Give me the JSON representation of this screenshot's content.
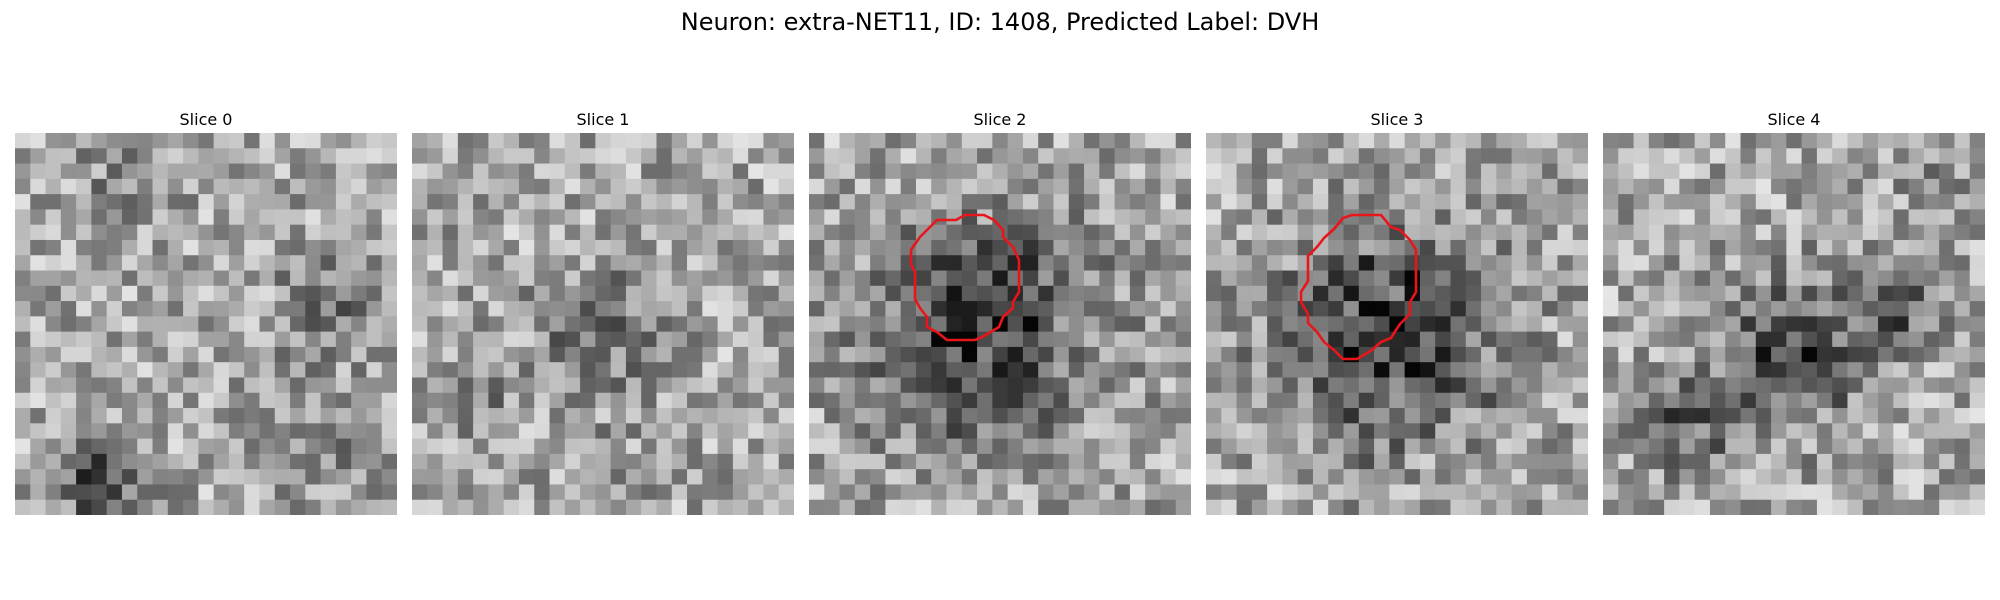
{
  "figure": {
    "title": "Neuron: extra-NET11, ID: 1408, Predicted Label: DVH"
  },
  "slices": [
    {
      "label": "Slice 0",
      "has_outline": false
    },
    {
      "label": "Slice 1",
      "has_outline": false
    },
    {
      "label": "Slice 2",
      "has_outline": true
    },
    {
      "label": "Slice 3",
      "has_outline": true
    },
    {
      "label": "Slice 4",
      "has_outline": false
    }
  ],
  "colors": {
    "outline": "#e8151b",
    "background": "#ffffff"
  }
}
